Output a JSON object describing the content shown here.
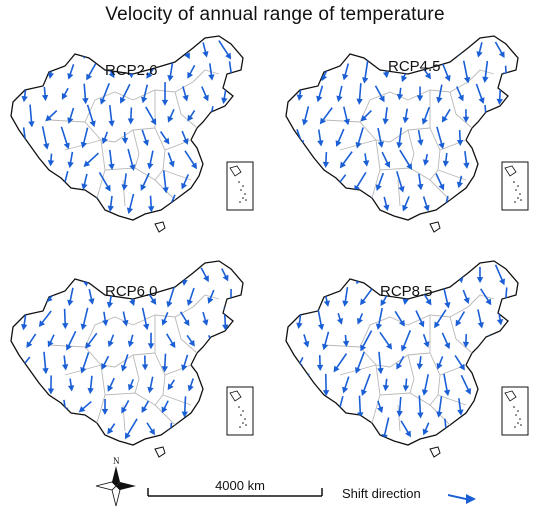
{
  "title": "Velocity of annual range of temperature",
  "colors": {
    "arrow": "#1a5fd6",
    "border": "#111111",
    "province": "#b8b8b8"
  },
  "panels": [
    {
      "label": "RCP2.6"
    },
    {
      "label": "RCP4.5"
    },
    {
      "label": "RCP6.0"
    },
    {
      "label": "RCP8.5"
    }
  ],
  "north_label": "N",
  "scale_label": "4000 km",
  "legend_label": "Shift direction"
}
